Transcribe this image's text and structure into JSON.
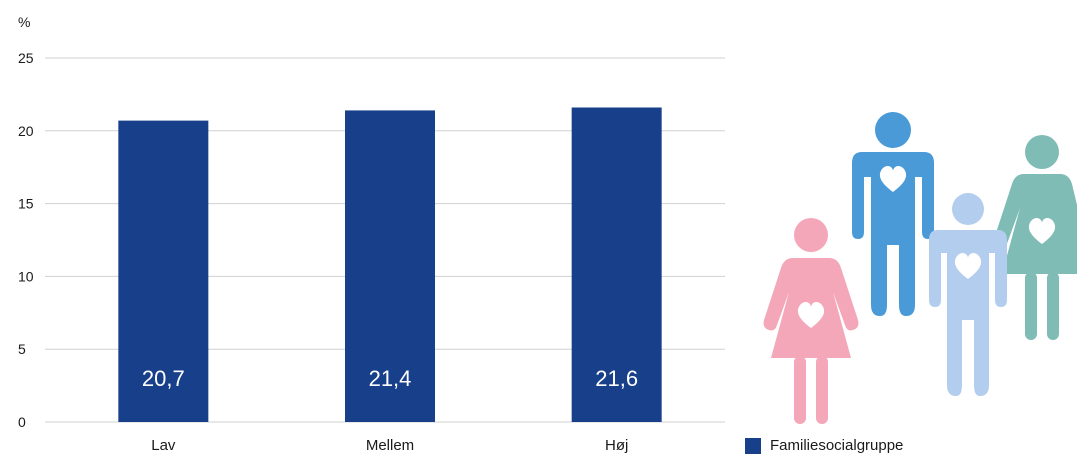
{
  "chart_data": {
    "type": "bar",
    "title": "",
    "unit_label": "%",
    "xlabel": "",
    "ylabel": "",
    "categories": [
      "Lav",
      "Mellem",
      "Høj"
    ],
    "series": [
      {
        "name": "Familiesocialgruppe",
        "values": [
          20.7,
          21.4,
          21.6
        ],
        "value_labels": [
          "20,7",
          "21,4",
          "21,6"
        ]
      }
    ],
    "ylim": [
      0,
      25
    ],
    "yticks": [
      0,
      5,
      10,
      15,
      20,
      25
    ],
    "grid": true,
    "legend_position": "bottom-right",
    "bar_color": "#173f8a",
    "grid_color": "#d0d0d0"
  },
  "illustration": {
    "icon": "family-people-icon",
    "colors": [
      "#f3a7b8",
      "#4a9ad8",
      "#b3cdee",
      "#7fbcb6"
    ]
  }
}
